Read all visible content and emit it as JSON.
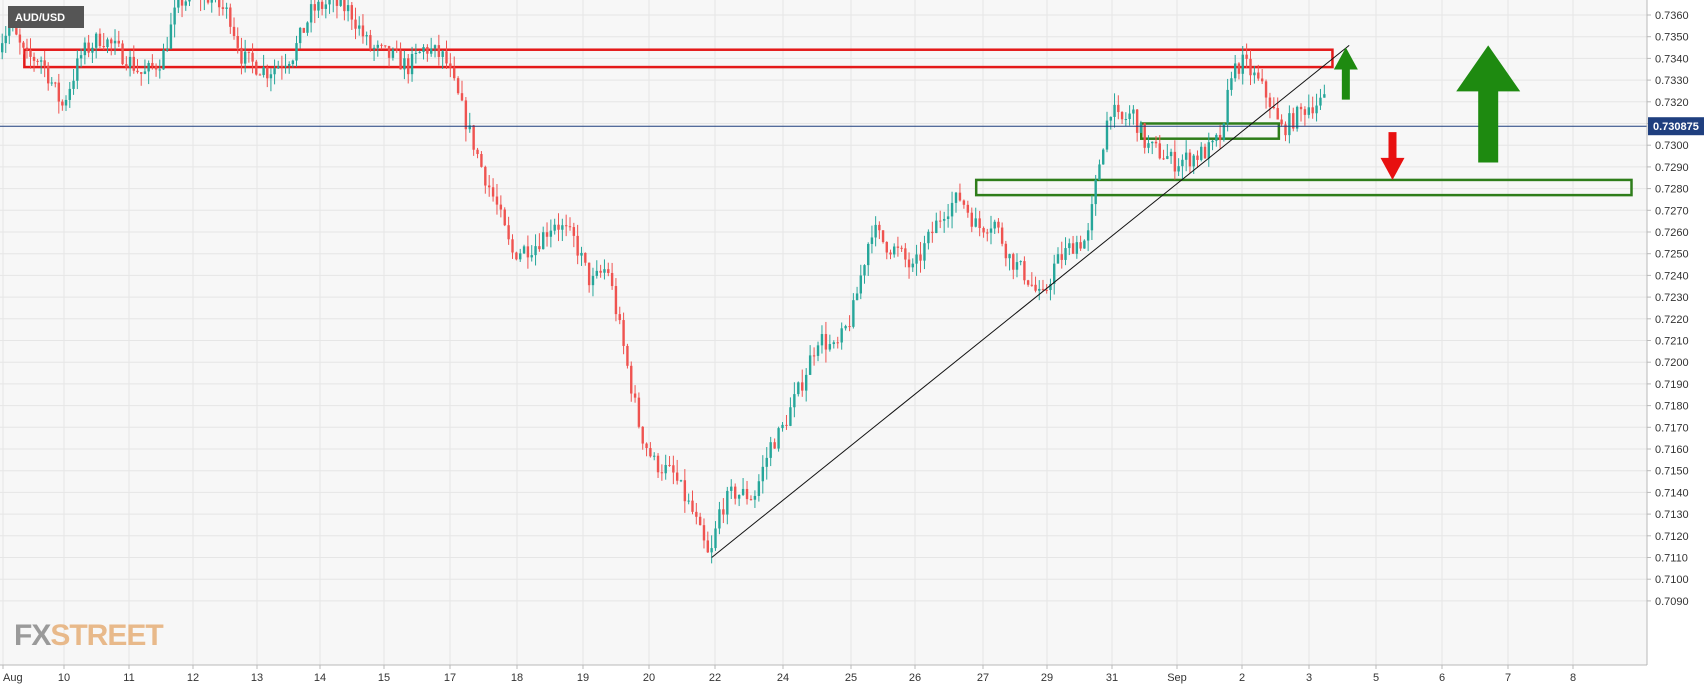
{
  "symbol": "AUD/USD",
  "current_price_label": "0.730875",
  "logo": {
    "part1": "FX",
    "part2": "STREET"
  },
  "colors": {
    "bull": "#26a69a",
    "bear": "#ef5350",
    "resistance_box": "#e41a1a",
    "support_box": "#2e7d1a",
    "arrow_up": "#1e8a10",
    "arrow_down": "#e81010",
    "price_line": "#1f3f7f",
    "grid": "#e6e6e6"
  },
  "chart_data": {
    "type": "candlestick",
    "y_ticks": [
      "0.7360",
      "0.7350",
      "0.7340",
      "0.7330",
      "0.7320",
      "0.7310",
      "0.7300",
      "0.7290",
      "0.7280",
      "0.7270",
      "0.7260",
      "0.7250",
      "0.7240",
      "0.7230",
      "0.7220",
      "0.7210",
      "0.7200",
      "0.7190",
      "0.7180",
      "0.7170",
      "0.7160",
      "0.7150",
      "0.7140",
      "0.7130",
      "0.7120",
      "0.7110",
      "0.7100",
      "0.7090"
    ],
    "ylim": [
      0.7084,
      0.7364
    ],
    "x_ticks": [
      {
        "label": "Aug",
        "pos": 0
      },
      {
        "label": "10",
        "pos": 1
      },
      {
        "label": "11",
        "pos": 2
      },
      {
        "label": "12",
        "pos": 3
      },
      {
        "label": "13",
        "pos": 4
      },
      {
        "label": "14",
        "pos": 5
      },
      {
        "label": "15",
        "pos": 6
      },
      {
        "label": "17",
        "pos": 7
      },
      {
        "label": "18",
        "pos": 8
      },
      {
        "label": "19",
        "pos": 9
      },
      {
        "label": "20",
        "pos": 10
      },
      {
        "label": "22",
        "pos": 11
      },
      {
        "label": "24",
        "pos": 12
      },
      {
        "label": "25",
        "pos": 13
      },
      {
        "label": "26",
        "pos": 14
      },
      {
        "label": "27",
        "pos": 15
      },
      {
        "label": "29",
        "pos": 16
      },
      {
        "label": "31",
        "pos": 17
      },
      {
        "label": "Sep",
        "pos": 18
      },
      {
        "label": "2",
        "pos": 19
      },
      {
        "label": "3",
        "pos": 20
      },
      {
        "label": "5",
        "pos": 21
      },
      {
        "label": "6",
        "pos": 22
      },
      {
        "label": "7",
        "pos": 23
      },
      {
        "label": "8",
        "pos": 24
      }
    ],
    "price_path": [
      [
        -0.1,
        0.7345
      ],
      [
        0.15,
        0.7355
      ],
      [
        0.4,
        0.734
      ],
      [
        0.65,
        0.734
      ],
      [
        1.0,
        0.7318
      ],
      [
        1.3,
        0.7342
      ],
      [
        1.6,
        0.735
      ],
      [
        2.0,
        0.734
      ],
      [
        2.25,
        0.7332
      ],
      [
        2.55,
        0.734
      ],
      [
        2.8,
        0.7366
      ],
      [
        3.2,
        0.737
      ],
      [
        3.6,
        0.736
      ],
      [
        3.8,
        0.734
      ],
      [
        4.2,
        0.7334
      ],
      [
        4.6,
        0.7342
      ],
      [
        4.9,
        0.7362
      ],
      [
        5.2,
        0.7366
      ],
      [
        5.5,
        0.7362
      ],
      [
        5.8,
        0.7345
      ],
      [
        6.2,
        0.734
      ],
      [
        6.4,
        0.7336
      ],
      [
        6.65,
        0.7345
      ],
      [
        6.95,
        0.734
      ],
      [
        7.15,
        0.7322
      ],
      [
        7.3,
        0.7308
      ],
      [
        7.5,
        0.729
      ],
      [
        7.75,
        0.727
      ],
      [
        7.95,
        0.725
      ],
      [
        8.3,
        0.7254
      ],
      [
        8.6,
        0.7265
      ],
      [
        8.9,
        0.7256
      ],
      [
        9.15,
        0.7236
      ],
      [
        9.4,
        0.7244
      ],
      [
        9.7,
        0.7198
      ],
      [
        9.9,
        0.7168
      ],
      [
        10.1,
        0.7154
      ],
      [
        10.4,
        0.7148
      ],
      [
        10.7,
        0.713
      ],
      [
        10.95,
        0.7108
      ],
      [
        11.1,
        0.7132
      ],
      [
        11.3,
        0.714
      ],
      [
        11.6,
        0.7138
      ],
      [
        11.85,
        0.7162
      ],
      [
        12.0,
        0.7168
      ],
      [
        12.3,
        0.719
      ],
      [
        12.55,
        0.7212
      ],
      [
        12.8,
        0.7205
      ],
      [
        13.05,
        0.7222
      ],
      [
        13.35,
        0.7262
      ],
      [
        13.55,
        0.7255
      ],
      [
        13.8,
        0.725
      ],
      [
        14.0,
        0.7242
      ],
      [
        14.2,
        0.7255
      ],
      [
        14.45,
        0.727
      ],
      [
        14.7,
        0.7276
      ],
      [
        14.95,
        0.7262
      ],
      [
        15.2,
        0.7265
      ],
      [
        15.45,
        0.7248
      ],
      [
        15.7,
        0.724
      ],
      [
        15.95,
        0.7228
      ],
      [
        16.15,
        0.7245
      ],
      [
        16.45,
        0.7255
      ],
      [
        16.65,
        0.7256
      ],
      [
        16.85,
        0.7295
      ],
      [
        17.0,
        0.7318
      ],
      [
        17.15,
        0.731
      ],
      [
        17.35,
        0.7315
      ],
      [
        17.55,
        0.73
      ],
      [
        17.8,
        0.7296
      ],
      [
        18.0,
        0.7292
      ],
      [
        18.3,
        0.7295
      ],
      [
        18.55,
        0.7298
      ],
      [
        18.75,
        0.7306
      ],
      [
        18.85,
        0.7334
      ],
      [
        19.05,
        0.7338
      ],
      [
        19.25,
        0.733
      ],
      [
        19.45,
        0.732
      ],
      [
        19.6,
        0.7307
      ],
      [
        19.8,
        0.7312
      ],
      [
        20.0,
        0.7318
      ],
      [
        20.2,
        0.732
      ]
    ],
    "current_price": 0.730875,
    "trendline": {
      "from": [
        10.95,
        0.711
      ],
      "to": [
        20.6,
        0.7346
      ]
    },
    "resistance_zone": {
      "x_from": 0.35,
      "x_to": 20.35,
      "low": 0.7336,
      "high": 0.7344
    },
    "support_zones": [
      {
        "x_from": 17.45,
        "x_to": 19.55,
        "low": 0.7303,
        "high": 0.731
      },
      {
        "x_from": 14.9,
        "x_to": 24.9,
        "low": 0.7277,
        "high": 0.7284
      }
    ],
    "arrows": [
      {
        "dir": "up",
        "x": 20.55,
        "from": 0.7321,
        "to": 0.7345,
        "size": "small"
      },
      {
        "dir": "down",
        "x": 21.25,
        "from": 0.7306,
        "to": 0.7284,
        "size": "small"
      },
      {
        "dir": "up",
        "x": 22.7,
        "from": 0.7292,
        "to": 0.7346,
        "size": "large"
      }
    ]
  }
}
